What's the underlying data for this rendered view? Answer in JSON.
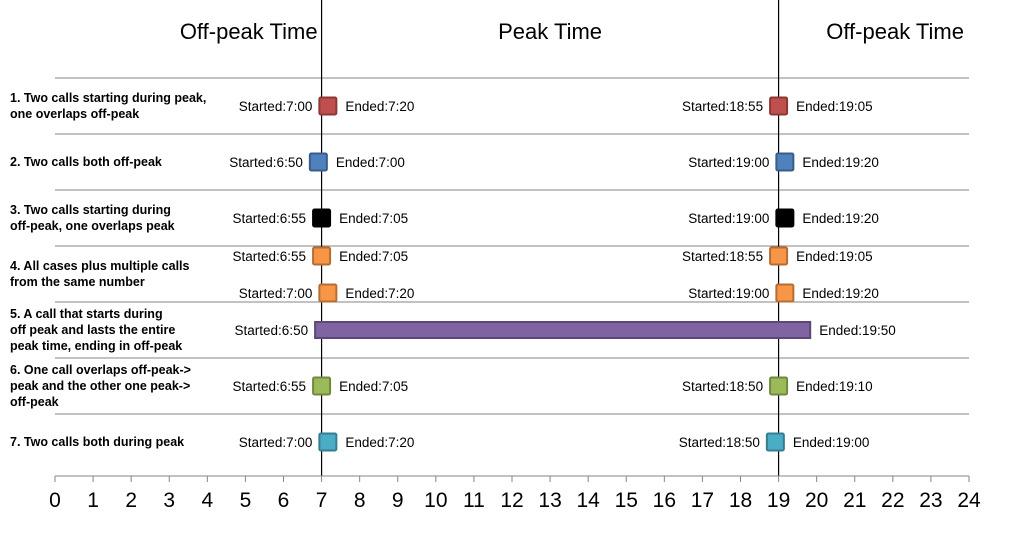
{
  "chart_data": {
    "type": "timeline",
    "period_titles": [
      "Off-peak Time",
      "Peak Time",
      "Off-peak Time"
    ],
    "peak_boundaries": [
      7,
      19
    ],
    "xlim": [
      0,
      24
    ],
    "x_ticks": [
      "0",
      "1",
      "2",
      "3",
      "4",
      "5",
      "6",
      "7",
      "8",
      "9",
      "10",
      "11",
      "12",
      "13",
      "14",
      "15",
      "16",
      "17",
      "18",
      "19",
      "20",
      "21",
      "22",
      "23",
      "24"
    ],
    "rows": [
      {
        "label_lines": [
          "1. Two calls starting during peak,",
          "one overlaps off-peak"
        ],
        "color": "#c0504d",
        "border": "#8c3836",
        "calls": [
          {
            "start": 7.0,
            "end": 7.33,
            "start_label": "Started:7:00",
            "end_label": "Ended:7:20"
          },
          {
            "start": 18.92,
            "end": 19.08,
            "start_label": "Started:18:55",
            "end_label": "Ended:19:05"
          }
        ]
      },
      {
        "label_lines": [
          "2. Two calls both off-peak"
        ],
        "color": "#4f81bd",
        "border": "#385d8a",
        "calls": [
          {
            "start": 6.83,
            "end": 7.0,
            "start_label": "Started:6:50",
            "end_label": "Ended:7:00"
          },
          {
            "start": 19.0,
            "end": 19.33,
            "start_label": "Started:19:00",
            "end_label": "Ended:19:20"
          }
        ]
      },
      {
        "label_lines": [
          "3. Two calls starting during",
          "off-peak, one overlaps peak"
        ],
        "color": "#000000",
        "border": "#000000",
        "calls": [
          {
            "start": 6.92,
            "end": 7.08,
            "start_label": "Started:6:55",
            "end_label": "Ended:7:05"
          },
          {
            "start": 19.0,
            "end": 19.33,
            "start_label": "Started:19:00",
            "end_label": "Ended:19:20"
          }
        ]
      },
      {
        "label_lines": [
          "4. All cases plus multiple calls",
          "from the same number"
        ],
        "color": "#f79646",
        "border": "#b66d31",
        "calls": [
          {
            "start": 6.92,
            "end": 7.08,
            "start_label": "Started:6:55",
            "end_label": "Ended:7:05",
            "sub": 0
          },
          {
            "start": 18.92,
            "end": 19.08,
            "start_label": "Started:18:55",
            "end_label": "Ended:19:05",
            "sub": 0
          },
          {
            "start": 7.0,
            "end": 7.33,
            "start_label": "Started:7:00",
            "end_label": "Ended:7:20",
            "sub": 1
          },
          {
            "start": 19.0,
            "end": 19.33,
            "start_label": "Started:19:00",
            "end_label": "Ended:19:20",
            "sub": 1
          }
        ]
      },
      {
        "label_lines": [
          "5. A call that starts  during",
          "off peak and lasts the entire",
          "peak time, ending in off-peak"
        ],
        "color": "#8064a2",
        "border": "#5c4776",
        "calls": [
          {
            "start": 6.83,
            "end": 19.83,
            "start_label": "Started:6:50",
            "end_label": "Ended:19:50",
            "bar": true
          }
        ]
      },
      {
        "label_lines": [
          "6. One call overlaps off-peak->",
          "peak and the other one peak->",
          "off-peak"
        ],
        "color": "#9bbb59",
        "border": "#71893f",
        "calls": [
          {
            "start": 6.92,
            "end": 7.08,
            "start_label": "Started:6:55",
            "end_label": "Ended:7:05"
          },
          {
            "start": 18.83,
            "end": 19.17,
            "start_label": "Started:18:50",
            "end_label": "Ended:19:10"
          }
        ]
      },
      {
        "label_lines": [
          "7. Two calls both during peak"
        ],
        "color": "#4bacc6",
        "border": "#357d91",
        "calls": [
          {
            "start": 7.0,
            "end": 7.33,
            "start_label": "Started:7:00",
            "end_label": "Ended:7:20"
          },
          {
            "start": 18.83,
            "end": 19.0,
            "start_label": "Started:18:50",
            "end_label": "Ended:19:00"
          }
        ]
      }
    ]
  }
}
